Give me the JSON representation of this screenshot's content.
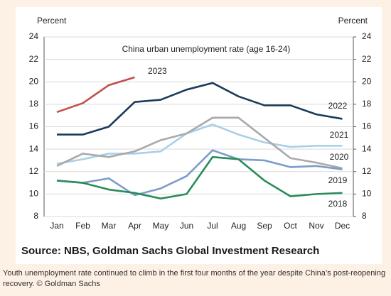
{
  "chart_data": {
    "type": "line",
    "title": "China urban unemployment rate (age 16-24)",
    "y_label": "Percent",
    "y2_label": "Percent",
    "categories": [
      "Jan",
      "Feb",
      "Mar",
      "Apr",
      "May",
      "Jun",
      "Jul",
      "Aug",
      "Sep",
      "Oct",
      "Nov",
      "Dec"
    ],
    "series": [
      {
        "name": "2023",
        "color": "#c44e4b",
        "values": [
          17.3,
          18.1,
          19.7,
          20.4,
          null,
          null,
          null,
          null,
          null,
          null,
          null,
          null
        ]
      },
      {
        "name": "2022",
        "color": "#1d3a5a",
        "values": [
          15.3,
          15.3,
          16.0,
          18.2,
          18.4,
          19.3,
          19.9,
          18.7,
          17.9,
          17.9,
          17.1,
          16.7
        ]
      },
      {
        "name": "2021",
        "color": "#a8d0e8",
        "values": [
          12.7,
          13.1,
          13.6,
          13.6,
          13.8,
          15.4,
          16.2,
          15.3,
          14.6,
          14.2,
          14.3,
          14.3
        ]
      },
      {
        "name": "2020",
        "color": "#a9a9a9",
        "values": [
          12.5,
          13.6,
          13.3,
          13.8,
          14.8,
          15.4,
          16.8,
          16.8,
          15.0,
          13.2,
          12.8,
          12.3
        ]
      },
      {
        "name": "2019",
        "color": "#7c9ccb",
        "values": [
          11.2,
          11.0,
          11.4,
          9.9,
          10.5,
          11.6,
          13.9,
          13.1,
          13.0,
          12.4,
          12.5,
          12.2
        ]
      },
      {
        "name": "2018",
        "color": "#2a8c5a",
        "values": [
          11.2,
          11.0,
          10.4,
          10.1,
          9.6,
          10.0,
          13.3,
          13.1,
          11.2,
          9.8,
          10.0,
          10.1
        ]
      }
    ],
    "ylim": [
      8,
      24
    ],
    "yticks": [
      8,
      10,
      12,
      14,
      16,
      18,
      20,
      22,
      24
    ],
    "y2lim": [
      8,
      24
    ],
    "y2ticks": [
      8,
      10,
      12,
      14,
      16,
      18,
      20,
      22,
      24
    ],
    "source": "Source: NBS, Goldman Sachs Global Investment Research"
  },
  "caption": "Youth unemployment rate continued to climb in the first four months of the year despite China’s post-reopening recovery. © Goldman Sachs"
}
